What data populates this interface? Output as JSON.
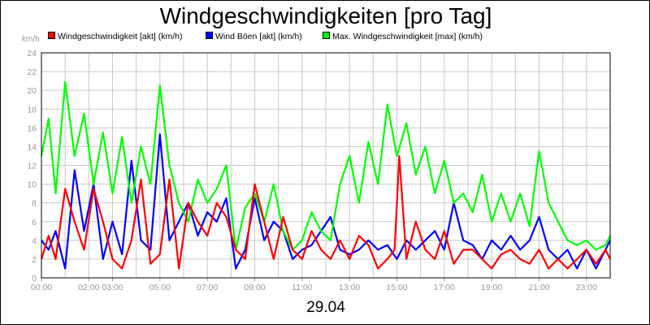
{
  "chart_data": {
    "type": "line",
    "title": "Windgeschwindigkeiten [pro Tag]",
    "y_unit": "km/h",
    "x_date": "29.04",
    "ylim": [
      0,
      24
    ],
    "y_ticks": [
      "0",
      "2",
      "4",
      "6",
      "8",
      "10",
      "12",
      "14",
      "16",
      "18",
      "20",
      "22",
      "24"
    ],
    "xlim": [
      0,
      24
    ],
    "x_ticks": [
      {
        "hour": 0,
        "label": "00:00"
      },
      {
        "hour": 2,
        "label": "02:00"
      },
      {
        "hour": 3,
        "label": "03:00"
      },
      {
        "hour": 5,
        "label": "05:00"
      },
      {
        "hour": 7,
        "label": "07:00"
      },
      {
        "hour": 9,
        "label": "09:00"
      },
      {
        "hour": 11,
        "label": "11:00"
      },
      {
        "hour": 13,
        "label": "13:00"
      },
      {
        "hour": 15,
        "label": "15:00"
      },
      {
        "hour": 17,
        "label": "17:00"
      },
      {
        "hour": 19,
        "label": "19:00"
      },
      {
        "hour": 21,
        "label": "21:00"
      },
      {
        "hour": 23,
        "label": "23:00"
      }
    ],
    "grid": true,
    "legend_position": "top",
    "series": [
      {
        "name": "Windgeschwindigkeit [akt] (km/h)",
        "color": "#ff0000",
        "x": [
          0,
          0.3,
          0.6,
          1.0,
          1.4,
          1.8,
          2.2,
          2.6,
          3.0,
          3.4,
          3.8,
          4.2,
          4.6,
          5.0,
          5.4,
          5.8,
          6.2,
          6.6,
          7.0,
          7.4,
          7.8,
          8.2,
          8.6,
          9.0,
          9.4,
          9.8,
          10.2,
          10.6,
          11.0,
          11.4,
          11.8,
          12.2,
          12.6,
          13.0,
          13.4,
          13.8,
          14.2,
          14.6,
          14.9,
          15.1,
          15.4,
          15.8,
          16.2,
          16.6,
          17.0,
          17.4,
          17.8,
          18.2,
          18.6,
          19.0,
          19.4,
          19.8,
          20.2,
          20.6,
          21.0,
          21.4,
          21.8,
          22.2,
          22.6,
          23.0,
          23.4,
          23.8,
          24.0
        ],
        "values": [
          2,
          4.5,
          2,
          9.5,
          6,
          3,
          9.5,
          6,
          2,
          1,
          4,
          10.5,
          1.5,
          2.5,
          10.5,
          1,
          8,
          6,
          4.5,
          8,
          6.5,
          3,
          2,
          10,
          6,
          2,
          6.5,
          3,
          2,
          5,
          3,
          2,
          4,
          2,
          4.5,
          3.5,
          1,
          2,
          3,
          13,
          2,
          6,
          3,
          2,
          5,
          1.5,
          3,
          3,
          2,
          1,
          2.5,
          3,
          2,
          1.5,
          3,
          1,
          2,
          1,
          2,
          3,
          1.5,
          3,
          2
        ]
      },
      {
        "name": "Wind Böen [akt] (km/h)",
        "color": "#0000ff",
        "x": [
          0,
          0.3,
          0.6,
          1.0,
          1.4,
          1.8,
          2.2,
          2.6,
          3.0,
          3.4,
          3.8,
          4.2,
          4.6,
          5.0,
          5.4,
          5.8,
          6.2,
          6.6,
          7.0,
          7.4,
          7.8,
          8.2,
          8.6,
          9.0,
          9.4,
          9.8,
          10.2,
          10.6,
          11.0,
          11.4,
          11.8,
          12.2,
          12.6,
          13.0,
          13.4,
          13.8,
          14.2,
          14.6,
          15.0,
          15.4,
          15.8,
          16.2,
          16.6,
          17.0,
          17.4,
          17.8,
          18.2,
          18.6,
          19.0,
          19.4,
          19.8,
          20.2,
          20.6,
          21.0,
          21.4,
          21.8,
          22.2,
          22.6,
          23.0,
          23.4,
          23.8,
          24.0
        ],
        "values": [
          4,
          3,
          5,
          1,
          11.5,
          5,
          10,
          2,
          6,
          2.5,
          12.5,
          4,
          3,
          15.3,
          4,
          6,
          8,
          4.5,
          7,
          6,
          8.5,
          1,
          3,
          8.5,
          4,
          6,
          5,
          2,
          3,
          3.5,
          5,
          6.5,
          3,
          2.5,
          3,
          4,
          3,
          3.5,
          2,
          4,
          3,
          4,
          5,
          3,
          8,
          4,
          3.5,
          2,
          4,
          3,
          4.5,
          3,
          4,
          6.5,
          3,
          2,
          3,
          1,
          3,
          1,
          3,
          4
        ]
      },
      {
        "name": "Max. Windgeschwindigkeit [max] (km/h)",
        "color": "#00ff00",
        "x": [
          0,
          0.3,
          0.6,
          1.0,
          1.4,
          1.8,
          2.2,
          2.6,
          3.0,
          3.4,
          3.8,
          4.2,
          4.6,
          5.0,
          5.4,
          5.8,
          6.2,
          6.6,
          7.0,
          7.4,
          7.8,
          8.2,
          8.6,
          9.0,
          9.4,
          9.8,
          10.2,
          10.6,
          11.0,
          11.4,
          11.8,
          12.2,
          12.6,
          13.0,
          13.4,
          13.8,
          14.2,
          14.6,
          15.0,
          15.4,
          15.8,
          16.2,
          16.6,
          17.0,
          17.4,
          17.8,
          18.2,
          18.6,
          19.0,
          19.4,
          19.8,
          20.2,
          20.6,
          21.0,
          21.4,
          21.8,
          22.2,
          22.6,
          23.0,
          23.4,
          23.8,
          24.0
        ],
        "values": [
          13,
          17,
          9,
          20.9,
          13,
          17.5,
          10,
          15.5,
          9,
          15,
          8,
          14,
          10,
          20.5,
          12,
          8,
          6,
          10.5,
          8,
          9.5,
          12,
          3,
          7.5,
          9,
          6,
          10,
          5,
          3,
          4,
          7,
          5,
          4,
          10,
          13,
          8,
          14.5,
          10,
          18.5,
          13,
          16.5,
          11,
          14,
          9,
          12.5,
          8,
          9,
          7,
          11,
          6,
          9,
          6,
          9,
          5.5,
          13.5,
          8,
          6,
          4,
          3.5,
          4,
          3,
          3.5,
          4.5
        ]
      }
    ]
  }
}
